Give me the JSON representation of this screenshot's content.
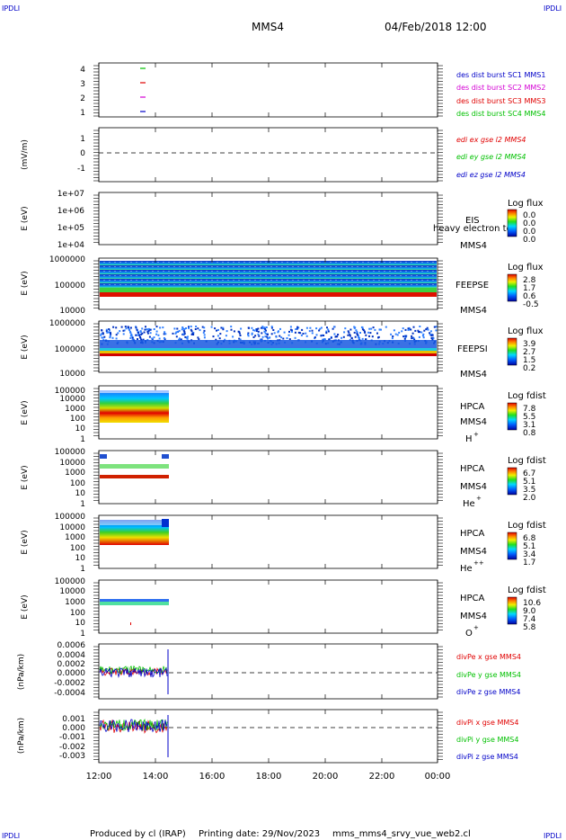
{
  "header": {
    "corner_left_top": "IPDLI",
    "corner_right_top": "IPDLI",
    "corner_left_bottom": "IPDLI",
    "corner_right_bottom": "IPDLI",
    "mission": "MMS4",
    "datetime": "04/Feb/2018 12:00"
  },
  "footer": {
    "produced_by": "Produced by cl (IRAP)",
    "printing_date": "Printing date: 29/Nov/2023",
    "filename": "mms_mms4_srvy_vue_web2.cl"
  },
  "colors": {
    "blue": "#0000c8",
    "magenta": "#d400d4",
    "red": "#e00000",
    "green": "#00c000"
  },
  "chart_data": [
    {
      "type": "line",
      "panel": "burst-intervals",
      "yticks": [
        "4",
        "3",
        "2",
        "1"
      ],
      "ylim": [
        0.5,
        4.5
      ],
      "legend": [
        "des dist burst SC1 MMS1",
        "des dist burst SC2 MMS2",
        "des dist burst SC3 MMS3",
        "des dist burst SC4 MMS4"
      ],
      "series": [
        {
          "name": "des dist burst SC1 MMS1",
          "level": 1,
          "x": [
            "13:00",
            "13:05"
          ]
        },
        {
          "name": "des dist burst SC2 MMS2",
          "level": 2,
          "x": [
            "13:00",
            "13:05"
          ]
        },
        {
          "name": "des dist burst SC3 MMS3",
          "level": 3,
          "x": [
            "13:00",
            "13:05"
          ]
        },
        {
          "name": "des dist burst SC4 MMS4",
          "level": 4,
          "x": [
            "13:00",
            "13:05"
          ]
        }
      ]
    },
    {
      "type": "line",
      "panel": "edi-e-field",
      "ylabel": "(mV/m)",
      "yticks": [
        "1",
        "0",
        "-1"
      ],
      "ylim": [
        -1.5,
        1.5
      ],
      "legend": [
        "edi ex gse l2 MMS4",
        "edi ey gse l2 MMS4",
        "edi ez gse l2 MMS4"
      ]
    },
    {
      "type": "heatmap",
      "panel": "eis",
      "ylabel": "E (eV)",
      "yticks": [
        "1e+07",
        "1e+06",
        "1e+05",
        "1e+04"
      ],
      "labels": [
        "EIS",
        "MMS4"
      ],
      "overlay_text": "heavy electron to",
      "colorbar": {
        "title": "Log flux",
        "ticks": [
          "0.0",
          "0.0",
          "0.0",
          "0.0"
        ]
      }
    },
    {
      "type": "heatmap",
      "panel": "feeps-electrons",
      "ylabel": "E (eV)",
      "yticks": [
        "1000000",
        "100000",
        "10000"
      ],
      "labels": [
        "FEEPSE",
        "MMS4"
      ],
      "colorbar": {
        "title": "Log flux",
        "ticks": [
          "2.8",
          "1.7",
          "0.6",
          "-0.5"
        ]
      },
      "x_range": [
        "12:00",
        "00:00"
      ]
    },
    {
      "type": "heatmap",
      "panel": "feeps-ions",
      "ylabel": "E (eV)",
      "yticks": [
        "1000000",
        "100000",
        "10000"
      ],
      "labels": [
        "FEEPSI",
        "MMS4"
      ],
      "colorbar": {
        "title": "Log flux",
        "ticks": [
          "3.9",
          "2.7",
          "1.5",
          "0.2"
        ]
      },
      "x_range": [
        "12:00",
        "00:00"
      ]
    },
    {
      "type": "heatmap",
      "panel": "hpca-h",
      "ylabel": "E (eV)",
      "yticks": [
        "100000",
        "10000",
        "1000",
        "100",
        "10",
        "1"
      ],
      "labels": [
        "HPCA",
        "MMS4",
        "H",
        "+"
      ],
      "colorbar": {
        "title": "Log fdist",
        "ticks": [
          "7.8",
          "5.5",
          "3.1",
          "0.8"
        ]
      },
      "x_range": [
        "12:00",
        "14:30"
      ]
    },
    {
      "type": "heatmap",
      "panel": "hpca-he",
      "ylabel": "E (eV)",
      "yticks": [
        "100000",
        "10000",
        "1000",
        "100",
        "10",
        "1"
      ],
      "labels": [
        "HPCA",
        "MMS4",
        "He",
        "+"
      ],
      "colorbar": {
        "title": "Log fdist",
        "ticks": [
          "6.7",
          "5.1",
          "3.5",
          "2.0"
        ]
      },
      "x_range": [
        "12:00",
        "14:30"
      ]
    },
    {
      "type": "heatmap",
      "panel": "hpca-he2",
      "ylabel": "E (eV)",
      "yticks": [
        "100000",
        "10000",
        "1000",
        "100",
        "10",
        "1"
      ],
      "labels": [
        "HPCA",
        "MMS4",
        "He",
        "++"
      ],
      "colorbar": {
        "title": "Log fdist",
        "ticks": [
          "6.8",
          "5.1",
          "3.4",
          "1.7"
        ]
      },
      "x_range": [
        "12:00",
        "14:30"
      ]
    },
    {
      "type": "heatmap",
      "panel": "hpca-o",
      "ylabel": "E (eV)",
      "yticks": [
        "100000",
        "10000",
        "1000",
        "100",
        "10",
        "1"
      ],
      "labels": [
        "HPCA",
        "MMS4",
        "O",
        "+"
      ],
      "colorbar": {
        "title": "Log fdist",
        "ticks": [
          "10.6",
          "9.0",
          "7.4",
          "5.8"
        ]
      },
      "x_range": [
        "12:00",
        "14:30"
      ]
    },
    {
      "type": "line",
      "panel": "div-pe",
      "ylabel": "(nPa/km)",
      "yticks": [
        "0.0006",
        "0.0004",
        "0.0002",
        "0.0000",
        "-0.0002",
        "-0.0004"
      ],
      "ylim": [
        -0.0005,
        0.0006
      ],
      "legend": [
        "divPe x gse MMS4",
        "divPe y gse MMS4",
        "divPe z gse MMS4"
      ],
      "x_range": [
        "12:00",
        "14:30"
      ]
    },
    {
      "type": "line",
      "panel": "div-pi",
      "ylabel": "(nPa/km)",
      "yticks": [
        "0.001",
        "0.000",
        "-0.001",
        "-0.002",
        "-0.003"
      ],
      "ylim": [
        -0.0035,
        0.0015
      ],
      "legend": [
        "divPi x gse MMS4",
        "divPi y gse MMS4",
        "divPi z gse MMS4"
      ],
      "x_range": [
        "12:00",
        "14:30"
      ]
    }
  ],
  "xaxis": {
    "ticks": [
      "12:00",
      "14:00",
      "16:00",
      "18:00",
      "20:00",
      "22:00",
      "00:00"
    ]
  }
}
